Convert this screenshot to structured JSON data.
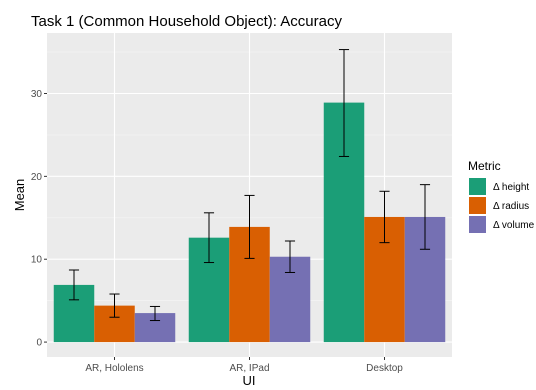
{
  "chart_data": {
    "type": "bar",
    "title": "Task 1 (Common Household Object): Accuracy",
    "xlabel": "UI",
    "ylabel": "Mean",
    "categories": [
      "AR, Hololens",
      "AR, IPad",
      "Desktop"
    ],
    "ylim": [
      -1.8,
      37.3
    ],
    "yticks": [
      0,
      10,
      20,
      30
    ],
    "grid": true,
    "legend_position": "right",
    "legend_title": "Metric",
    "series": [
      {
        "name": "Δ height",
        "color": "#1b9e77",
        "values": [
          6.9,
          12.6,
          28.9
        ],
        "err_low": [
          5.1,
          9.6,
          22.4
        ],
        "err_high": [
          8.7,
          15.6,
          35.3
        ]
      },
      {
        "name": "Δ radius",
        "color": "#d95f02",
        "values": [
          4.4,
          13.9,
          15.1
        ],
        "err_low": [
          3.0,
          10.1,
          12.0
        ],
        "err_high": [
          5.8,
          17.7,
          18.2
        ]
      },
      {
        "name": "Δ volume",
        "color": "#7570b3",
        "values": [
          3.5,
          10.3,
          15.1
        ],
        "err_low": [
          2.6,
          8.4,
          11.2
        ],
        "err_high": [
          4.3,
          12.2,
          19.0
        ]
      }
    ]
  }
}
